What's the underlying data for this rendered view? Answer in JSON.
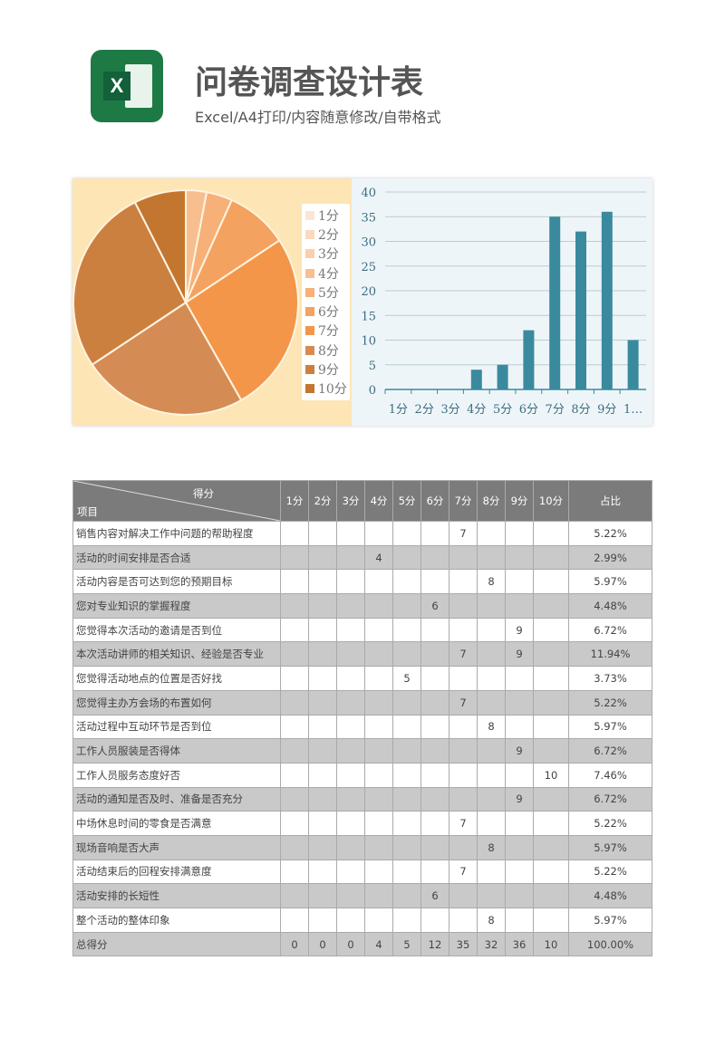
{
  "header": {
    "title": "问卷调查设计表",
    "subtitle": "Excel/A4打印/内容随意修改/自带格式",
    "app_icon": "excel-icon",
    "icon_letter": "X"
  },
  "colors": {
    "pie": [
      "#fbe6d6",
      "#fad9c0",
      "#f9cfae",
      "#f7bf8f",
      "#f6b078",
      "#f4a25f",
      "#f3964a",
      "#d58c54",
      "#cc8040",
      "#c3762f"
    ],
    "bar": "#3a8a9e"
  },
  "chart_data": [
    {
      "type": "pie",
      "categories": [
        "1分",
        "2分",
        "3分",
        "4分",
        "5分",
        "6分",
        "7分",
        "8分",
        "9分",
        "10分"
      ],
      "values": [
        0,
        0,
        0,
        4,
        5,
        12,
        35,
        32,
        36,
        10
      ],
      "legend": "right"
    },
    {
      "type": "bar",
      "categories": [
        "1分",
        "2分",
        "3分",
        "4分",
        "5分",
        "6分",
        "7分",
        "8分",
        "9分",
        "10分"
      ],
      "tick_labels": [
        "1分",
        "2分",
        "3分",
        "4分",
        "5分",
        "6分",
        "7分",
        "8分",
        "9分",
        "1…"
      ],
      "values": [
        0,
        0,
        0,
        4,
        5,
        12,
        35,
        32,
        36,
        10
      ],
      "ylim": [
        0,
        40
      ],
      "yticks": [
        "0",
        "5",
        "10",
        "15",
        "20",
        "25",
        "30",
        "35",
        "40"
      ],
      "grid": true
    }
  ],
  "table": {
    "corner_top": "得分",
    "corner_bottom": "项目",
    "columns": [
      "1分",
      "2分",
      "3分",
      "4分",
      "5分",
      "6分",
      "7分",
      "8分",
      "9分",
      "10分"
    ],
    "ratio_header": "占比",
    "rows": [
      {
        "item": "销售内容对解决工作中问题的帮助程度",
        "col": 7,
        "value": "7",
        "ratio": "5.22%"
      },
      {
        "item": "活动的时间安排是否合适",
        "col": 4,
        "value": "4",
        "ratio": "2.99%"
      },
      {
        "item": "活动内容是否可达到您的预期目标",
        "col": 8,
        "value": "8",
        "ratio": "5.97%"
      },
      {
        "item": "您对专业知识的掌握程度",
        "col": 6,
        "value": "6",
        "ratio": "4.48%"
      },
      {
        "item": "您觉得本次活动的邀请是否到位",
        "col": 9,
        "value": "9",
        "ratio": "6.72%"
      },
      {
        "item": "本次活动讲师的相关知识、经验是否专业",
        "col": 7,
        "value": "7",
        "col2": 9,
        "value2": "9",
        "ratio": "11.94%"
      },
      {
        "item": "您觉得活动地点的位置是否好找",
        "col": 5,
        "value": "5",
        "ratio": "3.73%"
      },
      {
        "item": "您觉得主办方会场的布置如何",
        "col": 7,
        "value": "7",
        "ratio": "5.22%"
      },
      {
        "item": "活动过程中互动环节是否到位",
        "col": 8,
        "value": "8",
        "ratio": "5.97%"
      },
      {
        "item": "工作人员服装是否得体",
        "col": 9,
        "value": "9",
        "ratio": "6.72%"
      },
      {
        "item": "工作人员服务态度好否",
        "col": 10,
        "value": "10",
        "ratio": "7.46%"
      },
      {
        "item": "活动的通知是否及时、准备是否充分",
        "col": 9,
        "value": "9",
        "ratio": "6.72%"
      },
      {
        "item": "中场休息时间的零食是否满意",
        "col": 7,
        "value": "7",
        "ratio": "5.22%"
      },
      {
        "item": "现场音响是否大声",
        "col": 8,
        "value": "8",
        "ratio": "5.97%"
      },
      {
        "item": "活动结束后的回程安排满意度",
        "col": 7,
        "value": "7",
        "ratio": "5.22%"
      },
      {
        "item": "活动安排的长短性",
        "col": 6,
        "value": "6",
        "ratio": "4.48%"
      },
      {
        "item": "整个活动的整体印象",
        "col": 8,
        "value": "8",
        "ratio": "5.97%"
      }
    ],
    "total": {
      "label": "总得分",
      "values": [
        "0",
        "0",
        "0",
        "4",
        "5",
        "12",
        "35",
        "32",
        "36",
        "10"
      ],
      "ratio": "100.00%"
    }
  }
}
